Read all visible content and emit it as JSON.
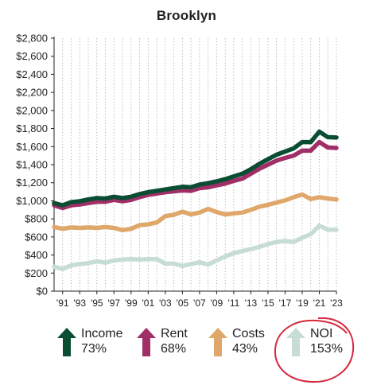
{
  "chart_data": {
    "type": "line",
    "title": "Brooklyn",
    "xlabel": "",
    "ylabel": "",
    "ylim": [
      0,
      2800
    ],
    "y_ticks": [
      "$0",
      "$200",
      "$400",
      "$600",
      "$800",
      "$1,000",
      "$1,200",
      "$1,400",
      "$1,600",
      "$1,800",
      "$2,000",
      "$2,200",
      "$2,400",
      "$2,600",
      "$2,800"
    ],
    "x_ticks": [
      "'91",
      "'93",
      "'95",
      "'97",
      "'99",
      "'01",
      "'03",
      "'05",
      "'07",
      "'09",
      "'11",
      "'13",
      "'15",
      "'17",
      "'19",
      "'21",
      "'23"
    ],
    "x": [
      1990,
      1991,
      1992,
      1993,
      1994,
      1995,
      1996,
      1997,
      1998,
      1999,
      2000,
      2001,
      2002,
      2003,
      2004,
      2005,
      2006,
      2007,
      2008,
      2009,
      2010,
      2011,
      2012,
      2013,
      2014,
      2015,
      2016,
      2017,
      2018,
      2019,
      2020,
      2021,
      2022,
      2023
    ],
    "grid": "vertical dotted",
    "series": [
      {
        "name": "Income",
        "color": "#0b4d33",
        "change": "73%",
        "values": [
          975,
          950,
          985,
          995,
          1015,
          1030,
          1025,
          1045,
          1030,
          1045,
          1075,
          1095,
          1110,
          1125,
          1140,
          1155,
          1150,
          1180,
          1195,
          1215,
          1240,
          1270,
          1300,
          1350,
          1410,
          1460,
          1510,
          1545,
          1580,
          1650,
          1650,
          1765,
          1705,
          1700
        ]
      },
      {
        "name": "Rent",
        "color": "#a12f67",
        "change": "68%",
        "values": [
          950,
          920,
          950,
          960,
          975,
          990,
          990,
          1010,
          995,
          1010,
          1040,
          1065,
          1080,
          1095,
          1105,
          1115,
          1110,
          1140,
          1150,
          1170,
          1190,
          1220,
          1245,
          1300,
          1355,
          1400,
          1445,
          1475,
          1500,
          1555,
          1555,
          1650,
          1590,
          1585
        ]
      },
      {
        "name": "Costs",
        "color": "#e0a76a",
        "change": "43%",
        "values": [
          710,
          690,
          705,
          700,
          705,
          700,
          710,
          700,
          675,
          690,
          730,
          740,
          760,
          830,
          845,
          880,
          850,
          870,
          910,
          875,
          850,
          860,
          870,
          900,
          935,
          955,
          980,
          1005,
          1040,
          1070,
          1020,
          1040,
          1025,
          1015
        ]
      },
      {
        "name": "NOI",
        "color": "#c7ddd4",
        "change": "153%",
        "values": [
          270,
          245,
          285,
          300,
          310,
          330,
          315,
          340,
          350,
          355,
          350,
          355,
          355,
          305,
          305,
          280,
          300,
          320,
          295,
          340,
          385,
          420,
          445,
          465,
          490,
          520,
          545,
          555,
          545,
          590,
          630,
          725,
          680,
          680
        ]
      }
    ]
  },
  "legend": [
    {
      "label": "Income",
      "pct": "73%"
    },
    {
      "label": "Rent",
      "pct": "68%"
    },
    {
      "label": "Costs",
      "pct": "43%"
    },
    {
      "label": "NOI",
      "pct": "153%"
    }
  ]
}
